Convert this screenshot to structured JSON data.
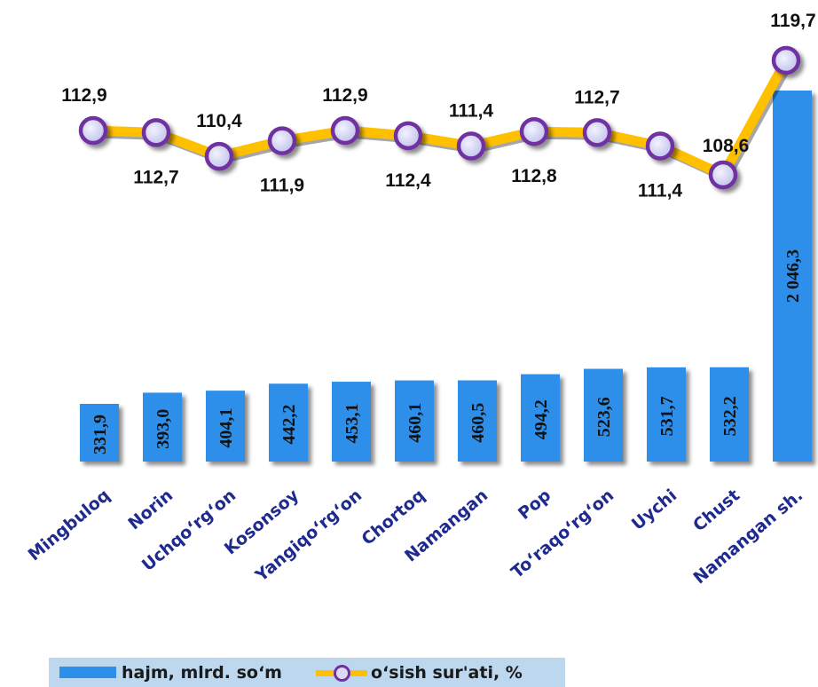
{
  "chart_data": {
    "type": "bar+line",
    "categories": [
      "Mingbuloq",
      "Norin",
      "Uchqo‘rg‘on",
      "Kosonsoy",
      "Yangiqo‘rg‘on",
      "Chortoq",
      "Namangan",
      "Pop",
      "To‘raqo‘rg‘on",
      "Uychi",
      "Chust",
      "Namangan sh."
    ],
    "series": [
      {
        "name": "hajm, mlrd. so‘m",
        "kind": "bar",
        "values": [
          331.9,
          393.0,
          404.1,
          442.2,
          453.1,
          460.1,
          460.5,
          494.2,
          523.6,
          531.7,
          532.2,
          2046.3
        ],
        "labels": [
          "331,9",
          "393,0",
          "404,1",
          "442,2",
          "453,1",
          "460,1",
          "460,5",
          "494,2",
          "523,6",
          "531,7",
          "532,2",
          "2 046,3"
        ],
        "color": "#2E8FEA"
      },
      {
        "name": "o‘sish sur'ati, %",
        "kind": "line",
        "values": [
          112.9,
          112.7,
          110.4,
          111.9,
          112.9,
          112.4,
          111.4,
          112.8,
          112.7,
          111.4,
          108.6,
          119.7
        ],
        "labels": [
          "112,9",
          "112,7",
          "110,4",
          "111,9",
          "112,9",
          "112,4",
          "111,4",
          "112,8",
          "112,7",
          "111,4",
          "108,6",
          "119,7"
        ],
        "color": "#FFC000",
        "marker_border": "#7030A0",
        "marker_fill": "#D9D9F3"
      }
    ],
    "label_positions": [
      "above",
      "below",
      "above",
      "below",
      "above",
      "below",
      "above",
      "below",
      "above",
      "below",
      "above",
      "above"
    ],
    "grid": false,
    "legend_position": "bottom-left"
  }
}
